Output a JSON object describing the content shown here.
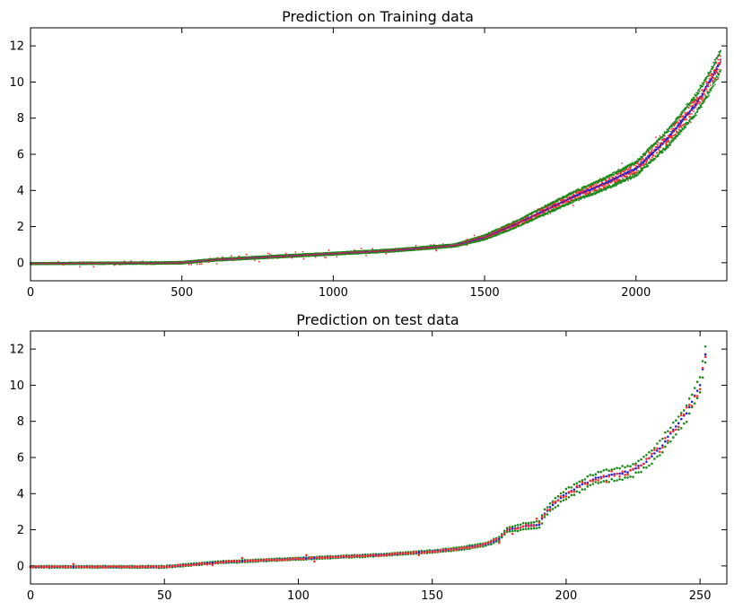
{
  "chart_data": [
    {
      "type": "scatter",
      "title": "Prediction on Training data",
      "xlabel": "",
      "ylabel": "",
      "xlim": [
        0,
        2300
      ],
      "ylim": [
        -1,
        13
      ],
      "xticks": [
        0,
        500,
        1000,
        1500,
        2000
      ],
      "yticks": [
        0,
        2,
        4,
        6,
        8,
        10,
        12
      ],
      "n_points": 2280,
      "grid": false,
      "series": [
        {
          "role": "actual",
          "color": "#2323d0",
          "marker": "point"
        },
        {
          "role": "prediction",
          "color": "#ff2b2b",
          "marker": "point"
        },
        {
          "role": "upper-bound",
          "color": "#1a8a1a",
          "marker": "point"
        },
        {
          "role": "lower-bound",
          "color": "#1a8a1a",
          "marker": "point"
        }
      ],
      "curve": {
        "x": [
          0,
          200,
          400,
          500,
          600,
          800,
          1000,
          1200,
          1400,
          1500,
          1600,
          1700,
          1800,
          1900,
          2000,
          2100,
          2150,
          2200,
          2250,
          2280
        ],
        "y": [
          -0.05,
          -0.03,
          -0.02,
          0.0,
          0.15,
          0.33,
          0.5,
          0.68,
          0.95,
          1.4,
          2.1,
          2.9,
          3.7,
          4.4,
          5.2,
          6.8,
          7.8,
          8.8,
          10.2,
          11.2
        ]
      },
      "band_halfwidth": {
        "x": [
          0,
          1400,
          1500,
          1800,
          2000,
          2280
        ],
        "y": [
          0.04,
          0.07,
          0.12,
          0.25,
          0.35,
          0.55
        ]
      }
    },
    {
      "type": "scatter",
      "title": "Prediction on test data",
      "xlabel": "",
      "ylabel": "",
      "xlim": [
        0,
        260
      ],
      "ylim": [
        -1,
        13
      ],
      "xticks": [
        0,
        50,
        100,
        150,
        200,
        250
      ],
      "yticks": [
        0,
        2,
        4,
        6,
        8,
        10,
        12
      ],
      "n_points": 253,
      "grid": false,
      "series": [
        {
          "role": "actual",
          "color": "#2323d0",
          "marker": "point"
        },
        {
          "role": "prediction",
          "color": "#ff2b2b",
          "marker": "point"
        },
        {
          "role": "upper-bound",
          "color": "#1a8a1a",
          "marker": "point"
        },
        {
          "role": "lower-bound",
          "color": "#1a8a1a",
          "marker": "point"
        }
      ],
      "curve": {
        "x": [
          0,
          50,
          70,
          100,
          130,
          150,
          160,
          170,
          175,
          178,
          185,
          190,
          192,
          195,
          200,
          205,
          210,
          215,
          220,
          225,
          230,
          235,
          240,
          245,
          250,
          252
        ],
        "y": [
          -0.05,
          -0.05,
          0.2,
          0.4,
          0.6,
          0.8,
          0.95,
          1.2,
          1.5,
          2.0,
          2.2,
          2.3,
          2.9,
          3.4,
          4.0,
          4.4,
          4.8,
          5.0,
          5.1,
          5.3,
          5.8,
          6.5,
          7.5,
          8.5,
          10.0,
          11.7
        ]
      },
      "band_halfwidth": {
        "x": [
          0,
          150,
          175,
          200,
          230,
          252
        ],
        "y": [
          0.04,
          0.06,
          0.1,
          0.25,
          0.35,
          0.45
        ]
      }
    }
  ]
}
